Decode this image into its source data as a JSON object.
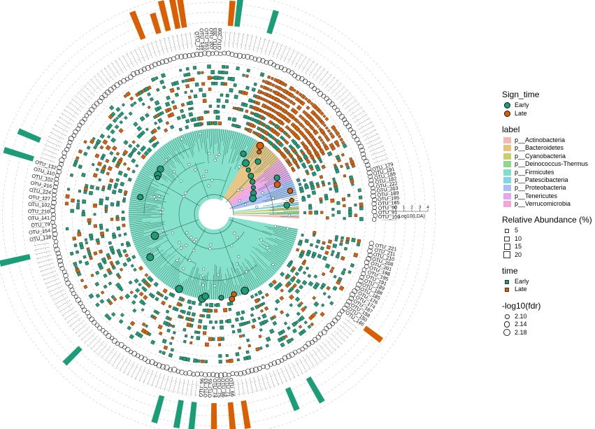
{
  "chart_data": {
    "type": "circular phylogenetic tree with annotation rings",
    "colors": {
      "early": "#1b9e77",
      "late": "#d95f02",
      "tree_fill": "#7fe0c9",
      "tree_line": "#2f6b5f",
      "grid": "#c8c8c8"
    },
    "lda_scale": {
      "label": "Log10(LDA)",
      "ticks": [
        "0",
        "1",
        "2",
        "3",
        "4"
      ]
    },
    "tip_labels_right": [
      "OTU_221",
      "OTU_211",
      "OTU_210",
      "OTU_208",
      "OTU_201",
      "OTU_198",
      "OTU_195",
      "OTU_191",
      "OTU_189",
      "OTU_188",
      "OTU_185",
      "OTU_176",
      "OTU_174",
      "OTU_167",
      "OTU_158",
      "OTU_150",
      "OTU_146"
    ],
    "tip_labels_upper_right": [
      "OTU_109",
      "OTU_91",
      "OTU_90",
      "OTU_185",
      "OTU_195",
      "OTU_189",
      "OTU_203",
      "OTU_222",
      "OTU_182",
      "OTU_189",
      "OTU_191",
      "OTU_179"
    ],
    "tip_labels_left": [
      "OTU_138",
      "OTU_154",
      "OTU_79",
      "OTU_141",
      "OTU_216",
      "OTU_102",
      "OTU_127",
      "OTU_224",
      "OTU_216",
      "OTU_102",
      "OTU_110",
      "OTU_132"
    ],
    "tip_labels_bottom": [
      "OTU_56",
      "OTU_63",
      "OTU_65",
      "OTU_74",
      "OTU_75",
      "OTU_86",
      "OTU_71",
      "OTU_66"
    ],
    "tip_labels_top": [
      "OTU_208",
      "OTU_203",
      "OTU_207",
      "OTU_163",
      "OTU_149",
      "OTU_72"
    ],
    "highlight_bars": [
      {
        "angle": 287,
        "len": 44,
        "sign": "Early"
      },
      {
        "angle": 293,
        "len": 34,
        "sign": "Early"
      },
      {
        "angle": 338,
        "len": 42,
        "sign": "Late"
      },
      {
        "angle": 343,
        "len": 30,
        "sign": "Late"
      },
      {
        "angle": 346,
        "len": 44,
        "sign": "Late"
      },
      {
        "angle": 349,
        "len": 44,
        "sign": "Late"
      },
      {
        "angle": 351,
        "len": 44,
        "sign": "Late"
      },
      {
        "angle": 5,
        "len": 36,
        "sign": "Late"
      },
      {
        "angle": 7,
        "len": 40,
        "sign": "Early"
      },
      {
        "angle": 17,
        "len": 34,
        "sign": "Early"
      },
      {
        "angle": 127,
        "len": 30,
        "sign": "Late"
      },
      {
        "angle": 150,
        "len": 40,
        "sign": "Early"
      },
      {
        "angle": 157,
        "len": 34,
        "sign": "Early"
      },
      {
        "angle": 171,
        "len": 40,
        "sign": "Late"
      },
      {
        "angle": 175,
        "len": 44,
        "sign": "Late"
      },
      {
        "angle": 180,
        "len": 46,
        "sign": "Late"
      },
      {
        "angle": 186,
        "len": 44,
        "sign": "Early"
      },
      {
        "angle": 190,
        "len": 40,
        "sign": "Early"
      },
      {
        "angle": 196,
        "len": 40,
        "sign": "Early"
      },
      {
        "angle": 225,
        "len": 32,
        "sign": "Early"
      },
      {
        "angle": 257,
        "len": 44,
        "sign": "Early"
      }
    ],
    "clades": [
      {
        "name": "p__Actinobacteria",
        "from": 91,
        "to": 93
      },
      {
        "name": "p__Bacteroidetes",
        "from": 30,
        "to": 50
      },
      {
        "name": "p__Cyanobacteria",
        "from": 85,
        "to": 87
      },
      {
        "name": "p__Deinococcus-Thermus",
        "from": 88,
        "to": 90
      },
      {
        "name": "p__Firmicutes",
        "from": 100,
        "to": 30
      },
      {
        "name": "p__Patescibacteria",
        "from": 82,
        "to": 84
      },
      {
        "name": "p__Proteobacteria",
        "from": 66,
        "to": 77
      },
      {
        "name": "p__Tenericutes",
        "from": 58,
        "to": 66
      },
      {
        "name": "p__Verrucomicrobia",
        "from": 50,
        "to": 58
      }
    ],
    "late_block": {
      "from": 20,
      "to": 62
    }
  },
  "legend": {
    "sign_time": {
      "title": "Sign_time",
      "items": [
        {
          "label": "Early",
          "color": "#1b9e77"
        },
        {
          "label": "Late",
          "color": "#d95f02"
        }
      ]
    },
    "label": {
      "title": "label",
      "items": [
        {
          "label": "p__Actinobacteria",
          "color": "#f4b9b4"
        },
        {
          "label": "p__Bacteroidetes",
          "color": "#e6c37f"
        },
        {
          "label": "p__Cyanobacteria",
          "color": "#c9cf6e"
        },
        {
          "label": "p__Deinococcus-Thermus",
          "color": "#8ed88e"
        },
        {
          "label": "p__Firmicutes",
          "color": "#7fe0c9"
        },
        {
          "label": "p__Patescibacteria",
          "color": "#7fd6e6"
        },
        {
          "label": "p__Proteobacteria",
          "color": "#a9c0f5"
        },
        {
          "label": "p__Tenericutes",
          "color": "#e4a6f0"
        },
        {
          "label": "p__Verrucomicrobia",
          "color": "#f3a6d8"
        }
      ]
    },
    "abundance": {
      "title": "Relative Abundance (%)",
      "items": [
        {
          "label": "5",
          "size": 6
        },
        {
          "label": "10",
          "size": 7.5
        },
        {
          "label": "15",
          "size": 9
        },
        {
          "label": "20",
          "size": 10.5
        }
      ]
    },
    "time": {
      "title": "time",
      "items": [
        {
          "label": "Early",
          "color": "#1b9e77"
        },
        {
          "label": "Late",
          "color": "#d95f02"
        }
      ]
    },
    "fdr": {
      "title": "-log10(fdr)",
      "items": [
        {
          "label": "2.10",
          "size": 7
        },
        {
          "label": "2.14",
          "size": 8.5
        },
        {
          "label": "2.18",
          "size": 10
        }
      ]
    }
  }
}
